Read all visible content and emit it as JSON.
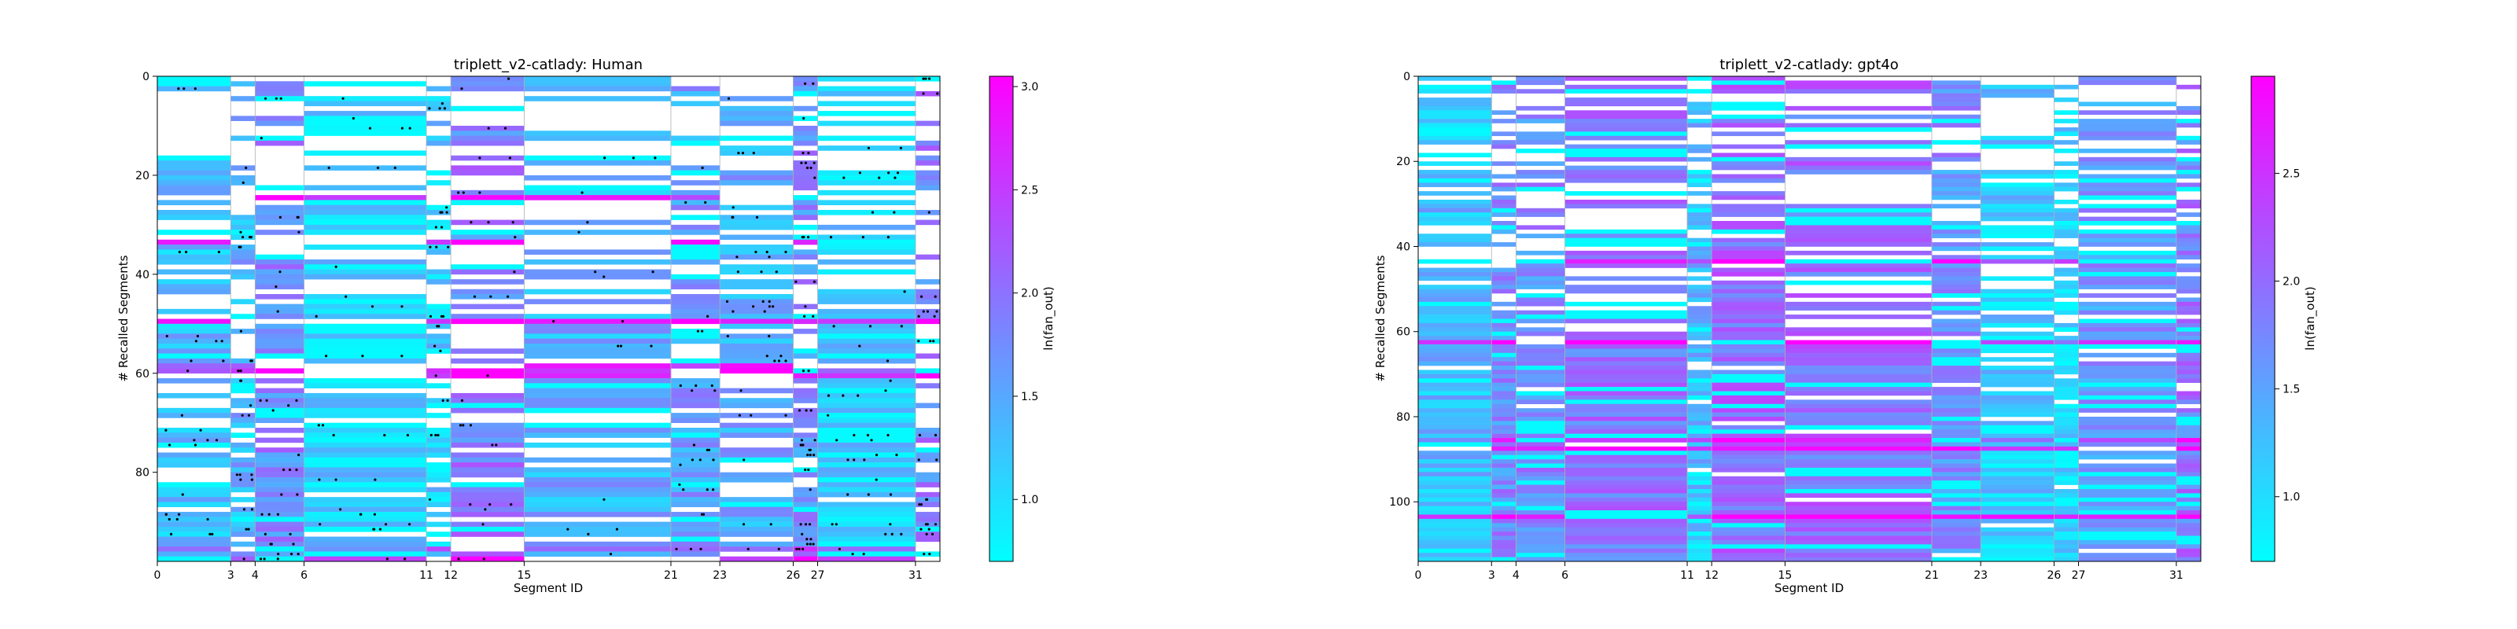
{
  "colormap": {
    "name": "cool",
    "low": "#00ffff",
    "high": "#ff00ff"
  },
  "chart_data": [
    {
      "type": "heatmap",
      "title": "triplett_v2-catlady: Human",
      "xlabel": "Segment ID",
      "ylabel": "# Recalled Segments",
      "colorbar_label": "ln(fan_out)",
      "x_ticks": [
        0,
        3,
        4,
        6,
        11,
        12,
        15,
        21,
        23,
        26,
        27,
        31
      ],
      "x_boundaries": [
        0,
        3,
        4,
        6,
        11,
        12,
        15,
        21,
        23,
        26,
        27,
        31,
        32
      ],
      "xlim": [
        0,
        32
      ],
      "y_ticks": [
        0,
        20,
        40,
        60,
        80
      ],
      "ylim": [
        0,
        98
      ],
      "n_rows": 98,
      "color_range": [
        0.7,
        3.05
      ],
      "colorbar_ticks": [
        1.0,
        1.5,
        2.0,
        2.5,
        3.0
      ],
      "has_dots": true,
      "seed": 11,
      "fill_start": 0.55,
      "fill_end": 0.85
    },
    {
      "type": "heatmap",
      "title": "triplett_v2-catlady: gpt4o",
      "xlabel": "Segment ID",
      "ylabel": "# Recalled Segments",
      "colorbar_label": "ln(fan_out)",
      "x_ticks": [
        0,
        3,
        4,
        6,
        11,
        12,
        15,
        21,
        23,
        26,
        27,
        31
      ],
      "x_boundaries": [
        0,
        3,
        4,
        6,
        11,
        12,
        15,
        21,
        23,
        26,
        27,
        31,
        32
      ],
      "xlim": [
        0,
        32
      ],
      "y_ticks": [
        0,
        20,
        40,
        60,
        80,
        100
      ],
      "ylim": [
        0,
        114
      ],
      "n_rows": 114,
      "color_range": [
        0.7,
        2.95
      ],
      "colorbar_ticks": [
        1.0,
        1.5,
        2.0,
        2.5
      ],
      "has_dots": false,
      "seed": 29,
      "fill_start": 0.8,
      "fill_end": 0.9
    }
  ]
}
